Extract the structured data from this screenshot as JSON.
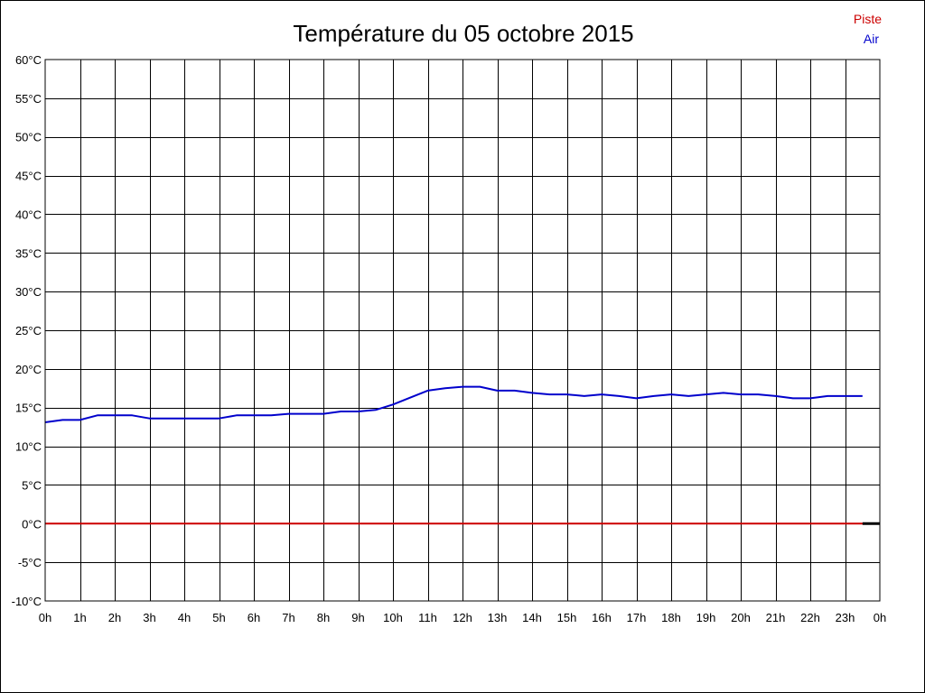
{
  "chart_data": {
    "type": "line",
    "title": "Température du 05 octobre 2015",
    "xlabel": "",
    "ylabel": "",
    "xlim": [
      0,
      24
    ],
    "ylim": [
      -10,
      60
    ],
    "grid": true,
    "legend_position": "top-right",
    "x_tick_labels": [
      "0h",
      "1h",
      "2h",
      "3h",
      "4h",
      "5h",
      "6h",
      "7h",
      "8h",
      "9h",
      "10h",
      "11h",
      "12h",
      "13h",
      "14h",
      "15h",
      "16h",
      "17h",
      "18h",
      "19h",
      "20h",
      "21h",
      "22h",
      "23h",
      "0h"
    ],
    "y_tick_labels": [
      "60°C",
      "55°C",
      "50°C",
      "45°C",
      "40°C",
      "35°C",
      "30°C",
      "25°C",
      "20°C",
      "15°C",
      "10°C",
      "5°C",
      "0°C",
      "-5°C",
      "-10°C"
    ],
    "y_tick_values": [
      60,
      55,
      50,
      45,
      40,
      35,
      30,
      25,
      20,
      15,
      10,
      5,
      0,
      -5,
      -10
    ],
    "series": [
      {
        "name": "Piste",
        "color": "#cc0000",
        "x": [
          0,
          23.5
        ],
        "y": [
          0,
          0
        ]
      },
      {
        "name": "Air",
        "color": "#0000cc",
        "x": [
          0,
          0.5,
          1,
          1.5,
          2,
          2.5,
          3,
          3.5,
          4,
          4.5,
          5,
          5.5,
          6,
          6.5,
          7,
          7.5,
          8,
          8.5,
          9,
          9.5,
          10,
          10.5,
          11,
          11.5,
          12,
          12.5,
          13,
          13.5,
          14,
          14.5,
          15,
          15.5,
          16,
          16.5,
          17,
          17.5,
          18,
          18.5,
          19,
          19.5,
          20,
          20.5,
          21,
          21.5,
          22,
          22.5,
          23,
          23.5
        ],
        "y": [
          13.1,
          13.4,
          13.4,
          14.0,
          14.0,
          14.0,
          13.6,
          13.6,
          13.6,
          13.6,
          13.6,
          14.0,
          14.0,
          14.0,
          14.2,
          14.2,
          14.2,
          14.5,
          14.5,
          14.7,
          15.4,
          16.3,
          17.2,
          17.5,
          17.7,
          17.7,
          17.2,
          17.2,
          16.9,
          16.7,
          16.7,
          16.5,
          16.7,
          16.5,
          16.2,
          16.5,
          16.7,
          16.5,
          16.7,
          16.9,
          16.7,
          16.7,
          16.5,
          16.2,
          16.2,
          16.5,
          16.5,
          16.5
        ]
      }
    ],
    "axis_end_segment": {
      "color": "#000000",
      "x": [
        23.5,
        24
      ],
      "y": [
        0,
        0
      ]
    }
  }
}
